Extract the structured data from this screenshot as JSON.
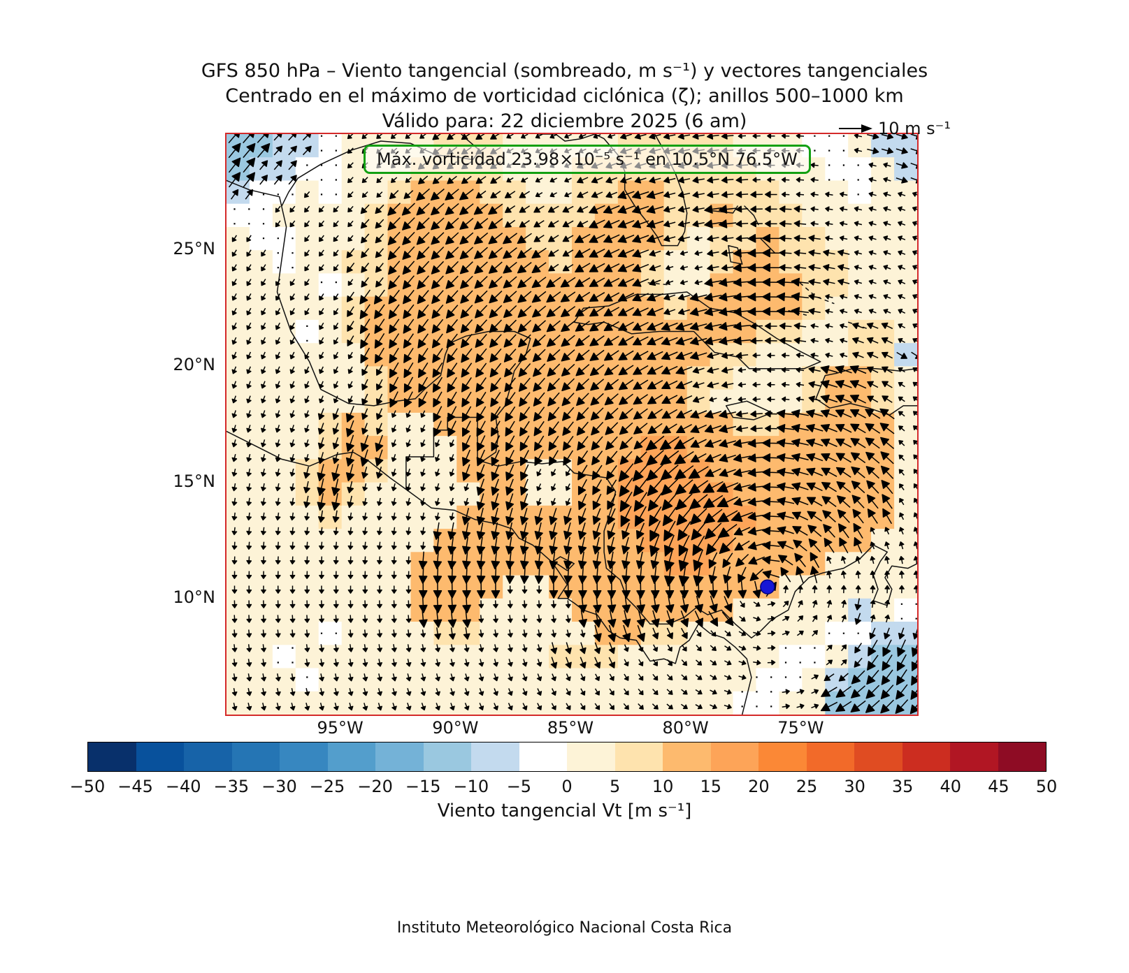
{
  "title": {
    "line1": "GFS 850 hPa – Viento tangencial (sombreado, m s⁻¹) y vectores tangenciales",
    "line2": "Centrado en el máximo de vorticidad ciclónica (ζ); anillos 500–1000 km",
    "line3": "Válido para: 22 diciembre 2025 (6 am)"
  },
  "annotation": {
    "text": "Máx. vorticidad 23.98×10⁻⁵ s⁻¹ en 10.5°N 76.5°W",
    "border_color": "#12a012"
  },
  "reference_arrow": {
    "label": "10 m s⁻¹"
  },
  "axes": {
    "x_ticks": [
      "95°W",
      "90°W",
      "85°W",
      "80°W",
      "75°W"
    ],
    "y_ticks": [
      "25°N",
      "20°N",
      "15°N",
      "10°N"
    ]
  },
  "colorbar": {
    "label": "Viento tangencial Vt [m s⁻¹]",
    "tick_labels": [
      "−50",
      "−45",
      "−40",
      "−35",
      "−30",
      "−25",
      "−20",
      "−15",
      "−10",
      "−5",
      "0",
      "5",
      "10",
      "15",
      "20",
      "25",
      "30",
      "35",
      "40",
      "45",
      "50"
    ],
    "colors": [
      "#08306b",
      "#08519c",
      "#1763a8",
      "#2575b4",
      "#3787c0",
      "#539ecc",
      "#74b2d7",
      "#9ac8e0",
      "#c3daee",
      "#ffffff",
      "#fdf3d7",
      "#fee3ae",
      "#fdba6e",
      "#fda458",
      "#fb8836",
      "#f26a29",
      "#e04c22",
      "#cc2d20",
      "#b11623",
      "#8e0c24"
    ]
  },
  "footer": "Instituto Meteorológico Nacional Costa Rica",
  "chart_data": {
    "type": "heatmap",
    "variable": "Viento tangencial Vt",
    "units": "m s⁻¹",
    "level": "850 hPa",
    "valid_time": "22 diciembre 2025 (6 am)",
    "lon_range": [
      -100,
      -70
    ],
    "lat_range": [
      5,
      30
    ],
    "x_tick_lons": [
      -95,
      -90,
      -85,
      -80,
      -75
    ],
    "y_tick_lats": [
      25,
      20,
      15,
      10
    ],
    "colormap": {
      "vmin": -50,
      "vmax": 50,
      "step": 5
    },
    "vorticity_center": {
      "lat": 10.5,
      "lon": -76.5,
      "value_text": "23.98×10⁻⁵ s⁻¹"
    },
    "rings_km": [
      500,
      1000
    ],
    "reference_vector_ms": 10,
    "rotation": "counterclockwise",
    "grid": {
      "lon0": -99.5,
      "lat0": 29.5,
      "dlon": 1,
      "dlat": -1,
      "values": [
        [
          -13,
          -13,
          -7,
          -7,
          -2,
          3,
          3,
          3,
          3,
          7,
          7,
          7,
          3,
          3,
          3,
          3,
          3,
          7,
          7,
          7,
          7,
          7,
          3,
          3,
          3,
          -2,
          -2,
          3,
          -7,
          -7
        ],
        [
          -13,
          -7,
          -7,
          -2,
          -2,
          3,
          3,
          3,
          7,
          7,
          7,
          7,
          3,
          3,
          3,
          7,
          7,
          7,
          7,
          7,
          7,
          7,
          7,
          3,
          3,
          3,
          -2,
          -2,
          3,
          -7
        ],
        [
          -7,
          -2,
          -2,
          3,
          -2,
          3,
          3,
          7,
          12,
          12,
          12,
          7,
          7,
          3,
          3,
          7,
          7,
          12,
          12,
          7,
          7,
          7,
          7,
          7,
          3,
          3,
          3,
          -2,
          3,
          3
        ],
        [
          -2,
          -2,
          3,
          3,
          3,
          3,
          7,
          12,
          12,
          12,
          12,
          12,
          7,
          7,
          7,
          7,
          12,
          12,
          12,
          7,
          7,
          12,
          7,
          7,
          7,
          3,
          3,
          3,
          3,
          3
        ],
        [
          3,
          -2,
          -2,
          3,
          3,
          3,
          7,
          12,
          12,
          12,
          12,
          12,
          12,
          7,
          7,
          12,
          12,
          12,
          12,
          7,
          3,
          7,
          7,
          12,
          7,
          7,
          3,
          3,
          3,
          3
        ],
        [
          3,
          3,
          -2,
          3,
          3,
          7,
          7,
          12,
          12,
          12,
          12,
          12,
          12,
          12,
          7,
          12,
          12,
          12,
          7,
          3,
          3,
          7,
          12,
          12,
          7,
          7,
          7,
          3,
          3,
          3
        ],
        [
          3,
          3,
          3,
          3,
          -2,
          3,
          7,
          12,
          12,
          12,
          12,
          12,
          12,
          12,
          12,
          12,
          12,
          12,
          7,
          3,
          3,
          12,
          12,
          12,
          12,
          7,
          7,
          3,
          3,
          3
        ],
        [
          3,
          3,
          3,
          3,
          3,
          7,
          12,
          12,
          12,
          12,
          12,
          12,
          12,
          12,
          12,
          12,
          12,
          12,
          12,
          7,
          12,
          12,
          12,
          12,
          12,
          7,
          3,
          3,
          3,
          3
        ],
        [
          3,
          3,
          3,
          -2,
          3,
          7,
          12,
          12,
          12,
          12,
          12,
          12,
          12,
          12,
          12,
          12,
          12,
          12,
          12,
          12,
          12,
          12,
          12,
          7,
          7,
          3,
          3,
          7,
          7,
          3
        ],
        [
          3,
          3,
          3,
          3,
          3,
          3,
          12,
          12,
          12,
          12,
          12,
          12,
          12,
          12,
          12,
          12,
          12,
          12,
          12,
          12,
          12,
          7,
          7,
          3,
          3,
          3,
          3,
          7,
          7,
          -7
        ],
        [
          3,
          3,
          3,
          3,
          3,
          3,
          7,
          12,
          12,
          12,
          12,
          12,
          12,
          12,
          12,
          12,
          12,
          12,
          12,
          12,
          7,
          7,
          3,
          3,
          3,
          7,
          12,
          12,
          7,
          3
        ],
        [
          3,
          3,
          3,
          3,
          3,
          3,
          7,
          12,
          12,
          12,
          12,
          12,
          12,
          12,
          12,
          12,
          12,
          12,
          12,
          12,
          7,
          3,
          3,
          3,
          3,
          7,
          12,
          12,
          7,
          3
        ],
        [
          3,
          3,
          3,
          3,
          7,
          12,
          7,
          3,
          3,
          12,
          12,
          12,
          12,
          12,
          12,
          12,
          12,
          12,
          12,
          12,
          12,
          12,
          7,
          7,
          12,
          12,
          12,
          12,
          12,
          3
        ],
        [
          3,
          3,
          3,
          3,
          7,
          12,
          12,
          3,
          3,
          3,
          12,
          12,
          12,
          12,
          12,
          12,
          12,
          12,
          17,
          17,
          12,
          12,
          12,
          12,
          12,
          12,
          12,
          12,
          12,
          3
        ],
        [
          3,
          3,
          3,
          7,
          12,
          12,
          7,
          3,
          3,
          3,
          12,
          12,
          12,
          3,
          3,
          12,
          12,
          17,
          17,
          17,
          17,
          12,
          12,
          12,
          12,
          12,
          12,
          12,
          12,
          3
        ],
        [
          3,
          3,
          3,
          7,
          12,
          7,
          3,
          3,
          3,
          3,
          3,
          12,
          12,
          3,
          3,
          12,
          12,
          17,
          17,
          17,
          17,
          17,
          12,
          12,
          12,
          12,
          12,
          12,
          12,
          3
        ],
        [
          3,
          3,
          3,
          3,
          7,
          3,
          3,
          3,
          3,
          3,
          12,
          12,
          12,
          12,
          12,
          12,
          12,
          17,
          17,
          17,
          17,
          17,
          17,
          12,
          12,
          12,
          12,
          12,
          12,
          3
        ],
        [
          3,
          3,
          3,
          3,
          3,
          3,
          3,
          3,
          3,
          12,
          12,
          12,
          12,
          12,
          12,
          12,
          12,
          12,
          17,
          17,
          17,
          17,
          12,
          12,
          12,
          12,
          12,
          12,
          3,
          3
        ],
        [
          3,
          3,
          3,
          3,
          3,
          3,
          3,
          3,
          12,
          12,
          12,
          12,
          12,
          12,
          12,
          12,
          12,
          12,
          12,
          17,
          17,
          12,
          12,
          12,
          12,
          12,
          3,
          3,
          3,
          3
        ],
        [
          3,
          3,
          3,
          3,
          3,
          3,
          3,
          3,
          12,
          12,
          12,
          12,
          3,
          3,
          12,
          12,
          12,
          12,
          12,
          12,
          12,
          12,
          12,
          12,
          3,
          3,
          3,
          3,
          3,
          3
        ],
        [
          3,
          3,
          3,
          3,
          3,
          3,
          3,
          3,
          12,
          12,
          12,
          3,
          3,
          3,
          3,
          12,
          12,
          12,
          12,
          12,
          12,
          12,
          3,
          3,
          3,
          3,
          3,
          -7,
          3,
          -2
        ],
        [
          3,
          3,
          3,
          3,
          -2,
          3,
          3,
          3,
          3,
          7,
          7,
          3,
          3,
          3,
          3,
          3,
          12,
          12,
          7,
          7,
          3,
          3,
          3,
          3,
          3,
          3,
          -2,
          -2,
          -7,
          -7
        ],
        [
          3,
          3,
          -2,
          3,
          3,
          3,
          3,
          3,
          3,
          3,
          3,
          3,
          3,
          3,
          7,
          7,
          7,
          3,
          3,
          3,
          3,
          3,
          3,
          3,
          -2,
          -2,
          3,
          -7,
          -13,
          -13
        ],
        [
          3,
          3,
          3,
          -2,
          3,
          3,
          3,
          3,
          3,
          3,
          3,
          3,
          3,
          3,
          3,
          3,
          3,
          3,
          3,
          3,
          3,
          3,
          3,
          -2,
          -2,
          3,
          -7,
          -13,
          -13,
          -13
        ],
        [
          3,
          3,
          3,
          3,
          3,
          3,
          3,
          3,
          3,
          3,
          3,
          3,
          3,
          3,
          3,
          3,
          3,
          3,
          3,
          3,
          3,
          3,
          -2,
          -2,
          3,
          3,
          -13,
          -13,
          -13,
          -13
        ]
      ]
    }
  }
}
